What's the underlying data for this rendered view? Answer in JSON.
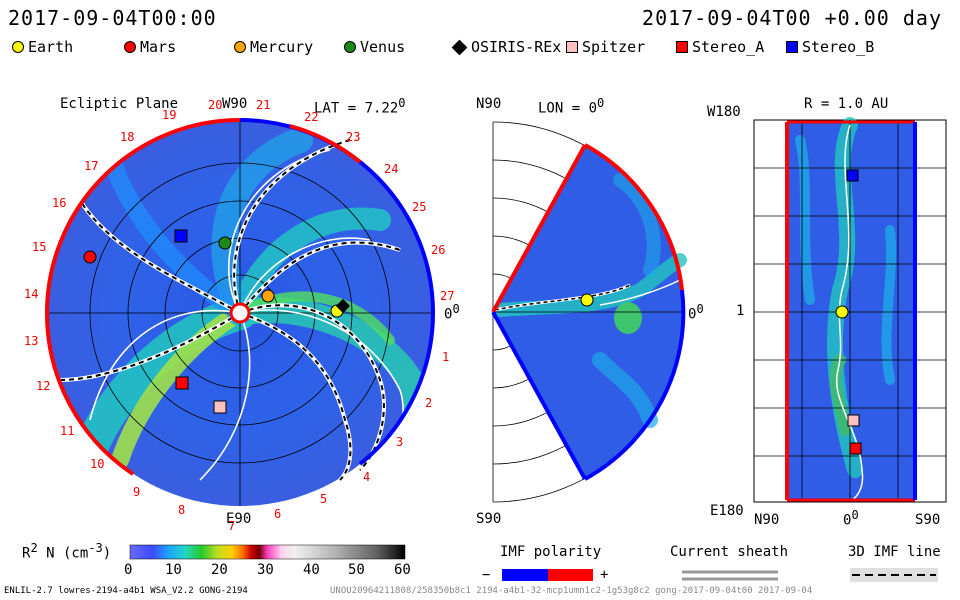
{
  "header": {
    "left_time": "2017-09-04T00:00",
    "right_time": "2017-09-04T00 +0.00 day"
  },
  "legend": [
    {
      "label": "Earth",
      "shape": "circle",
      "color": "#ffff00"
    },
    {
      "label": "Mars",
      "shape": "circle",
      "color": "#ff0000"
    },
    {
      "label": "Mercury",
      "shape": "circle",
      "color": "#ffa500"
    },
    {
      "label": "Venus",
      "shape": "circle",
      "color": "#1a8a1a"
    },
    {
      "label": "OSIRIS-REx",
      "shape": "diamond",
      "color": "#000000"
    },
    {
      "label": "Spitzer",
      "shape": "square",
      "color": "#ffc0c0"
    },
    {
      "label": "Stereo_A",
      "shape": "square",
      "color": "#ff0000"
    },
    {
      "label": "Stereo_B",
      "shape": "square",
      "color": "#0000ff"
    }
  ],
  "ecliptic": {
    "title": "Ecliptic Plane",
    "top_label": "W90",
    "lat_label": "LAT = 7.22",
    "lat_sup": "0",
    "right_label": "0",
    "right_sup": "0",
    "bottom_label": "E90",
    "ticks": [
      "1",
      "2",
      "3",
      "4",
      "5",
      "6",
      "7",
      "8",
      "9",
      "10",
      "11",
      "12",
      "13",
      "14",
      "15",
      "16",
      "17",
      "18",
      "19",
      "20",
      "21",
      "22",
      "23",
      "24",
      "25",
      "26",
      "27"
    ]
  },
  "meridional": {
    "title": "LON = 0",
    "title_sup": "0",
    "top_label": "N90",
    "bottom_label": "S90",
    "right_label": "0",
    "right_sup": "0"
  },
  "radial": {
    "title": "R = 1.0 AU",
    "top_label": "W180",
    "mid_label": "1",
    "bottom_label": "E180",
    "x_left": "N90",
    "x_mid": "0",
    "x_mid_sup": "0",
    "x_right": "S90"
  },
  "colorbar": {
    "label": "R",
    "label_sup": "2",
    "label_rest": " N (cm",
    "label_sup2": "-3",
    "label_end": ")",
    "ticks": [
      "0",
      "10",
      "20",
      "30",
      "40",
      "50",
      "60"
    ]
  },
  "imf": {
    "title": "IMF polarity",
    "minus": "−",
    "plus": "+"
  },
  "sheath": {
    "title": "Current sheath"
  },
  "imf3d": {
    "title": "3D IMF line"
  },
  "footer": {
    "left": "ENLIL-2.7 lowres-2194-a4b1 WSA_V2.2 GONG-2194",
    "right": "UNOU20964211808/258350b8c1 2194-a4b1-32-mcp1umn1c2-1g53g8c2 gong-2017-09-04t00   2017-09-04"
  }
}
